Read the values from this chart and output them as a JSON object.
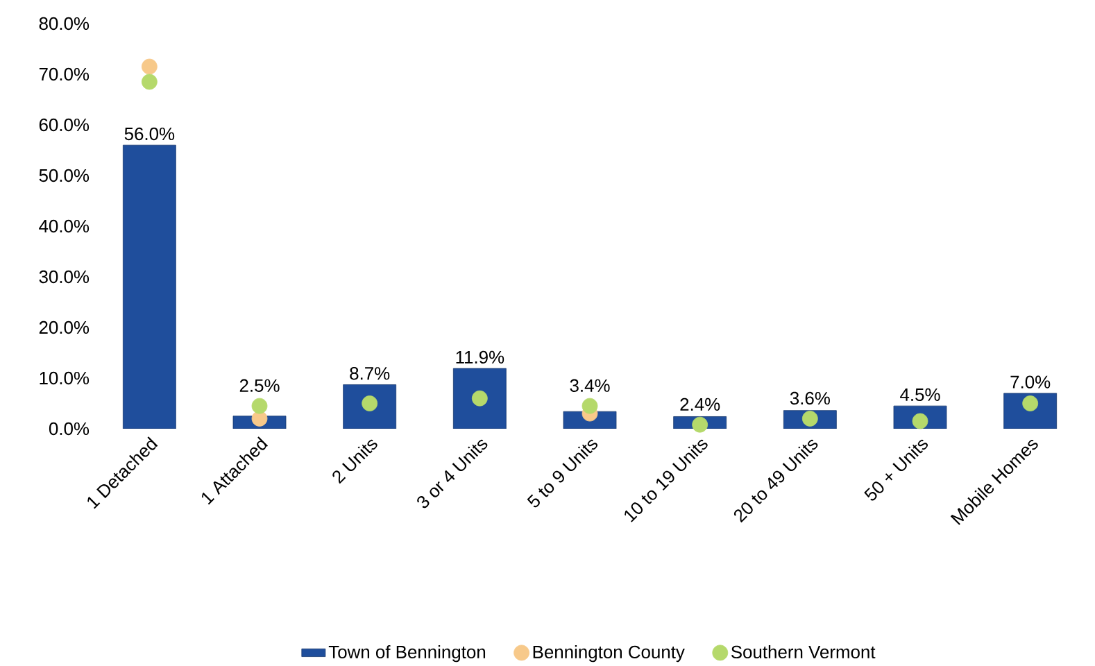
{
  "chart_data": {
    "type": "bar",
    "categories": [
      "1 Detached",
      "1 Attached",
      "2 Units",
      "3 or 4 Units",
      "5 to 9 Units",
      "10 to 19 Units",
      "20 to 49 Units",
      "50 + Units",
      "Mobile Homes"
    ],
    "series": [
      {
        "name": "Town of Bennington",
        "type": "bar",
        "color": "#1f4e9c",
        "values": [
          56.0,
          2.5,
          8.7,
          11.9,
          3.4,
          2.4,
          3.6,
          4.5,
          7.0
        ],
        "value_labels": [
          "56.0%",
          "2.5%",
          "8.7%",
          "11.9%",
          "3.4%",
          "2.4%",
          "3.6%",
          "4.5%",
          "7.0%"
        ]
      },
      {
        "name": "Bennington County",
        "type": "scatter",
        "color": "#f7c98a",
        "x": [
          "1 Detached",
          "1 Attached",
          "2 Units",
          "3 or 4 Units",
          "5 to 9 Units",
          "10 to 19 Units",
          "20 to 49 Units",
          "50 + Units",
          "Mobile Homes"
        ],
        "values": [
          71.5,
          2.0,
          null,
          null,
          3.0,
          null,
          null,
          null,
          null
        ]
      },
      {
        "name": "Southern Vermont",
        "type": "scatter",
        "color": "#b5d96b",
        "x": [
          "1 Detached",
          "1 Attached",
          "2 Units",
          "3 or 4 Units",
          "5 to 9 Units",
          "10 to 19 Units",
          "20 to 49 Units",
          "50 + Units",
          "Mobile Homes"
        ],
        "values": [
          68.5,
          4.5,
          5.0,
          6.0,
          4.5,
          0.8,
          2.0,
          1.5,
          5.0
        ]
      }
    ],
    "ylim": [
      0,
      80
    ],
    "yticks": [
      {
        "value": 0,
        "label": "0.0%"
      },
      {
        "value": 10,
        "label": "10.0%"
      },
      {
        "value": 20,
        "label": "20.0%"
      },
      {
        "value": 30,
        "label": "30.0%"
      },
      {
        "value": 40,
        "label": "40.0%"
      },
      {
        "value": 50,
        "label": "50.0%"
      },
      {
        "value": 60,
        "label": "60.0%"
      },
      {
        "value": 70,
        "label": "70.0%"
      },
      {
        "value": 80,
        "label": "80.0%"
      }
    ],
    "grid": false,
    "legend": "bottom",
    "marker": "circle"
  }
}
